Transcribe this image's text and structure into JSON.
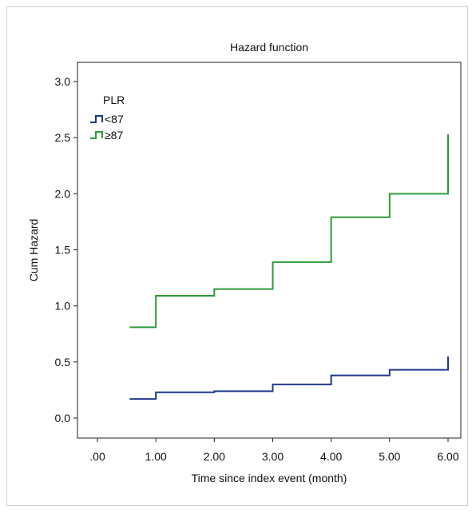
{
  "chart_data": {
    "type": "line",
    "title": "Hazard function",
    "xlabel": "Time since index event (month)",
    "ylabel": "Cum Hazard",
    "xlim": [
      0,
      6
    ],
    "ylim": [
      0,
      3
    ],
    "x_tick_labels": [
      ".00",
      "1.00",
      "2.00",
      "3.00",
      "4.00",
      "5.00",
      "6.00"
    ],
    "x_ticks": [
      0,
      1,
      2,
      3,
      4,
      5,
      6
    ],
    "y_tick_labels": [
      "0.0",
      "0.5",
      "1.0",
      "1.5",
      "2.0",
      "2.5",
      "3.0"
    ],
    "y_ticks": [
      0,
      0.5,
      1,
      1.5,
      2,
      2.5,
      3
    ],
    "grid": false,
    "legend_title": "PLR",
    "legend_position": "top-left",
    "series": [
      {
        "name": "<87",
        "color": "#1f3a8a",
        "step": true,
        "x": [
          0.55,
          1.0,
          2.0,
          3.0,
          4.0,
          5.0,
          6.0
        ],
        "values": [
          0.17,
          0.23,
          0.24,
          0.3,
          0.38,
          0.43,
          0.55
        ]
      },
      {
        "name": "≥87",
        "color": "#2e9a3a",
        "step": true,
        "x": [
          0.55,
          1.0,
          2.0,
          3.0,
          4.0,
          5.0,
          6.0
        ],
        "values": [
          0.81,
          1.09,
          1.15,
          1.39,
          1.79,
          2.0,
          2.53
        ]
      }
    ]
  }
}
